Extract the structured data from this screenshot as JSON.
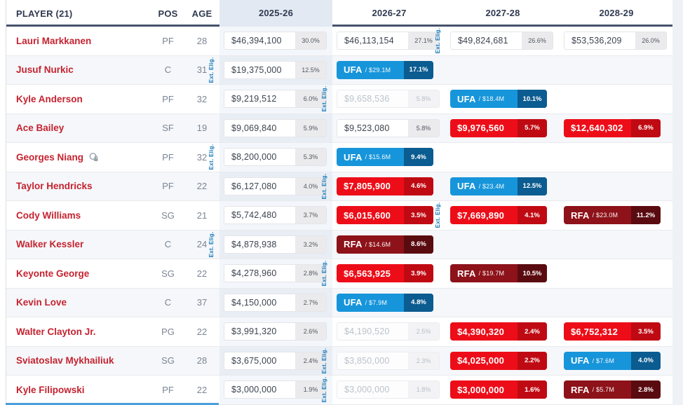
{
  "table": {
    "columns": {
      "player": "PLAYER (21)",
      "pos": "POS",
      "age": "AGE",
      "seasons": [
        "2025-26",
        "2026-27",
        "2027-28",
        "2028-29"
      ]
    },
    "ext_elig_label": "Ext. Elig.",
    "colors": {
      "accent_blue": "#1795da",
      "accent_red": "#ed0d18",
      "accent_dark_red": "#8d1219",
      "header_underline": "#46526b",
      "player_link": "#c42330",
      "column_highlight": "#e3e9f3"
    },
    "rows": [
      {
        "player": "Lauri Markkanen",
        "pos": "PF",
        "age": "28",
        "icon": false,
        "cells": [
          {
            "type": "plain",
            "value": "$46,394,100",
            "pct": "30.0%"
          },
          {
            "type": "plain",
            "value": "$46,113,154",
            "pct": "27.1%"
          },
          {
            "type": "plain",
            "value": "$49,824,681",
            "pct": "26.6%",
            "ext_elig": true
          },
          {
            "type": "plain",
            "value": "$53,536,209",
            "pct": "26.0%"
          }
        ]
      },
      {
        "player": "Jusuf Nurkic",
        "pos": "C",
        "age": "31",
        "icon": false,
        "cells": [
          {
            "type": "plain",
            "value": "$19,375,000",
            "pct": "12.5%",
            "ext_elig": true
          },
          {
            "type": "ufa",
            "label": "UFA",
            "amount": "/ $29.1M",
            "pct": "17.1%"
          },
          null,
          null
        ]
      },
      {
        "player": "Kyle Anderson",
        "pos": "PF",
        "age": "32",
        "icon": false,
        "cells": [
          {
            "type": "plain",
            "value": "$9,219,512",
            "pct": "6.0%"
          },
          {
            "type": "muted",
            "value": "$9,658,536",
            "pct": "5.8%",
            "ext_elig": true
          },
          {
            "type": "ufa",
            "label": "UFA",
            "amount": "/ $18.4M",
            "pct": "10.1%"
          },
          null
        ]
      },
      {
        "player": "Ace Bailey",
        "pos": "SF",
        "age": "19",
        "icon": false,
        "cells": [
          {
            "type": "plain",
            "value": "$9,069,840",
            "pct": "5.9%"
          },
          {
            "type": "plain",
            "value": "$9,523,080",
            "pct": "5.8%"
          },
          {
            "type": "red",
            "value": "$9,976,560",
            "pct": "5.7%"
          },
          {
            "type": "red",
            "value": "$12,640,302",
            "pct": "6.9%"
          }
        ]
      },
      {
        "player": "Georges Niang",
        "pos": "PF",
        "age": "32",
        "icon": true,
        "cells": [
          {
            "type": "plain",
            "value": "$8,200,000",
            "pct": "5.3%",
            "ext_elig": true
          },
          {
            "type": "ufa",
            "label": "UFA",
            "amount": "/ $15.6M",
            "pct": "9.4%"
          },
          null,
          null
        ]
      },
      {
        "player": "Taylor Hendricks",
        "pos": "PF",
        "age": "22",
        "icon": false,
        "cells": [
          {
            "type": "plain",
            "value": "$6,127,080",
            "pct": "4.0%"
          },
          {
            "type": "red",
            "value": "$7,805,900",
            "pct": "4.6%",
            "ext_elig": true
          },
          {
            "type": "ufa",
            "label": "UFA",
            "amount": "/ $23.4M",
            "pct": "12.5%"
          },
          null
        ]
      },
      {
        "player": "Cody Williams",
        "pos": "SG",
        "age": "21",
        "icon": false,
        "cells": [
          {
            "type": "plain",
            "value": "$5,742,480",
            "pct": "3.7%"
          },
          {
            "type": "red",
            "value": "$6,015,600",
            "pct": "3.5%"
          },
          {
            "type": "red",
            "value": "$7,669,890",
            "pct": "4.1%",
            "ext_elig": true
          },
          {
            "type": "rfa",
            "label": "RFA",
            "amount": "/ $23.0M",
            "pct": "11.2%"
          }
        ]
      },
      {
        "player": "Walker Kessler",
        "pos": "C",
        "age": "24",
        "icon": false,
        "cells": [
          {
            "type": "plain",
            "value": "$4,878,938",
            "pct": "3.2%",
            "ext_elig": true
          },
          {
            "type": "rfa",
            "label": "RFA",
            "amount": "/ $14.6M",
            "pct": "8.6%"
          },
          null,
          null
        ]
      },
      {
        "player": "Keyonte George",
        "pos": "SG",
        "age": "22",
        "icon": false,
        "cells": [
          {
            "type": "plain",
            "value": "$4,278,960",
            "pct": "2.8%"
          },
          {
            "type": "red",
            "value": "$6,563,925",
            "pct": "3.9%",
            "ext_elig": true
          },
          {
            "type": "rfa",
            "label": "RFA",
            "amount": "/ $19.7M",
            "pct": "10.5%"
          },
          null
        ]
      },
      {
        "player": "Kevin Love",
        "pos": "C",
        "age": "37",
        "icon": false,
        "cells": [
          {
            "type": "plain",
            "value": "$4,150,000",
            "pct": "2.7%"
          },
          {
            "type": "ufa",
            "label": "UFA",
            "amount": "/ $7.9M",
            "pct": "4.8%"
          },
          null,
          null
        ]
      },
      {
        "player": "Walter Clayton Jr.",
        "pos": "PG",
        "age": "22",
        "icon": false,
        "cells": [
          {
            "type": "plain",
            "value": "$3,991,320",
            "pct": "2.6%"
          },
          {
            "type": "muted",
            "value": "$4,190,520",
            "pct": "2.5%"
          },
          {
            "type": "red",
            "value": "$4,390,320",
            "pct": "2.4%"
          },
          {
            "type": "red",
            "value": "$6,752,312",
            "pct": "3.5%"
          }
        ]
      },
      {
        "player": "Sviatoslav Mykhailiuk",
        "pos": "SG",
        "age": "28",
        "icon": false,
        "cells": [
          {
            "type": "plain",
            "value": "$3,675,000",
            "pct": "2.4%"
          },
          {
            "type": "muted",
            "value": "$3,850,000",
            "pct": "2.3%",
            "ext_elig": true
          },
          {
            "type": "red",
            "value": "$4,025,000",
            "pct": "2.2%"
          },
          {
            "type": "ufa",
            "label": "UFA",
            "amount": "/ $7.6M",
            "pct": "4.0%"
          }
        ]
      },
      {
        "player": "Kyle Filipowski",
        "pos": "PF",
        "age": "22",
        "icon": false,
        "cells": [
          {
            "type": "plain",
            "value": "$3,000,000",
            "pct": "1.9%"
          },
          {
            "type": "muted",
            "value": "$3,000,000",
            "pct": "1.8%",
            "ext_elig": true
          },
          {
            "type": "red",
            "value": "$3,000,000",
            "pct": "1.6%"
          },
          {
            "type": "rfa",
            "label": "RFA",
            "amount": "/ $5.7M",
            "pct": "2.8%"
          }
        ]
      }
    ]
  }
}
